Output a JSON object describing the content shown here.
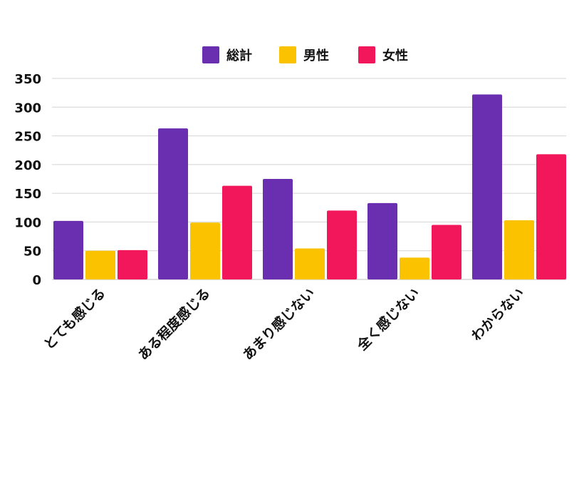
{
  "chart_data": {
    "type": "bar",
    "categories": [
      "とても感じる",
      "ある程度感じる",
      "あまり感じない",
      "全く感じない",
      "わからない"
    ],
    "series": [
      {
        "name": "総計",
        "color": "#6a2fb0",
        "values": [
          102,
          263,
          175,
          133,
          322
        ]
      },
      {
        "name": "男性",
        "color": "#fbc200",
        "values": [
          50,
          99,
          54,
          38,
          103
        ]
      },
      {
        "name": "女性",
        "color": "#f2165a",
        "values": [
          51,
          163,
          120,
          95,
          218
        ]
      }
    ],
    "y_ticks": [
      0,
      50,
      100,
      150,
      200,
      250,
      300,
      350
    ],
    "ylim": [
      0,
      350
    ],
    "grid": true,
    "legend_position": "top-center"
  }
}
